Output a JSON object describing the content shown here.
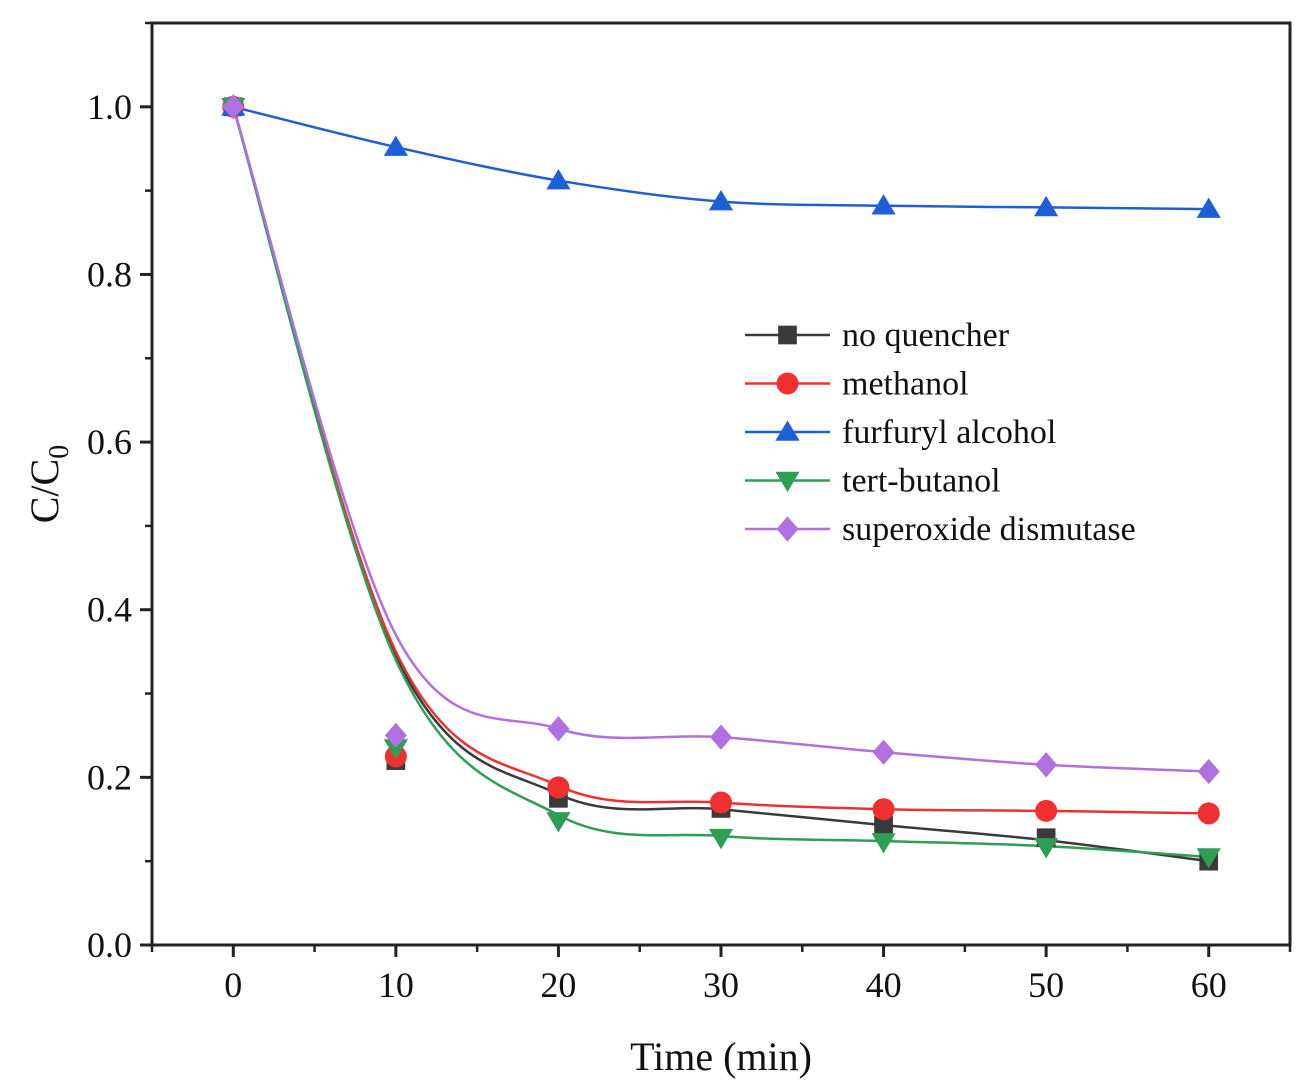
{
  "chart_data": {
    "type": "line",
    "title": "",
    "xlabel": "Time (min)",
    "ylabel_main": "C/C",
    "ylabel_sub": "0",
    "xlim": [
      -5,
      65
    ],
    "ylim": [
      0,
      1.1
    ],
    "x_ticks": [
      0,
      10,
      20,
      30,
      40,
      50,
      60
    ],
    "x_tick_labels": [
      "0",
      "10",
      "20",
      "30",
      "40",
      "50",
      "60"
    ],
    "y_ticks": [
      0,
      0.2,
      0.4,
      0.6,
      0.8,
      1.0
    ],
    "y_tick_labels": [
      "0.0",
      "0.2",
      "0.4",
      "0.6",
      "0.8",
      "1.0"
    ],
    "grid": false,
    "legend_position": "right-center",
    "x": [
      0,
      10,
      20,
      30,
      40,
      50,
      60
    ],
    "series": [
      {
        "name": "no quencher",
        "marker": "square",
        "color": "#3a3a3a",
        "values": [
          1.0,
          0.22,
          0.175,
          0.163,
          0.143,
          0.128,
          0.1
        ],
        "curve": [
          1.0,
          0.345,
          0.18,
          0.162,
          0.143,
          0.125,
          0.1
        ]
      },
      {
        "name": "methanol",
        "marker": "circle",
        "color": "#f03030",
        "values": [
          1.0,
          0.225,
          0.188,
          0.17,
          0.162,
          0.16,
          0.157
        ],
        "curve": [
          1.0,
          0.35,
          0.19,
          0.17,
          0.162,
          0.16,
          0.157
        ]
      },
      {
        "name": "furfuryl alcohol",
        "marker": "triangle-up",
        "color": "#1f5fd6",
        "values": [
          1.0,
          0.952,
          0.912,
          0.887,
          0.882,
          0.88,
          0.878
        ],
        "curve": [
          1.0,
          0.952,
          0.912,
          0.887,
          0.882,
          0.88,
          0.878
        ]
      },
      {
        "name": "tert-butanol",
        "marker": "triangle-down",
        "color": "#2e9e55",
        "values": [
          1.0,
          0.235,
          0.148,
          0.128,
          0.123,
          0.117,
          0.105
        ],
        "curve": [
          1.0,
          0.34,
          0.155,
          0.13,
          0.124,
          0.118,
          0.105
        ]
      },
      {
        "name": "superoxide dismutase",
        "marker": "diamond",
        "color": "#b070e0",
        "values": [
          1.0,
          0.25,
          0.258,
          0.248,
          0.23,
          0.215,
          0.207
        ],
        "curve": [
          1.0,
          0.37,
          0.258,
          0.248,
          0.23,
          0.215,
          0.207
        ]
      }
    ]
  }
}
